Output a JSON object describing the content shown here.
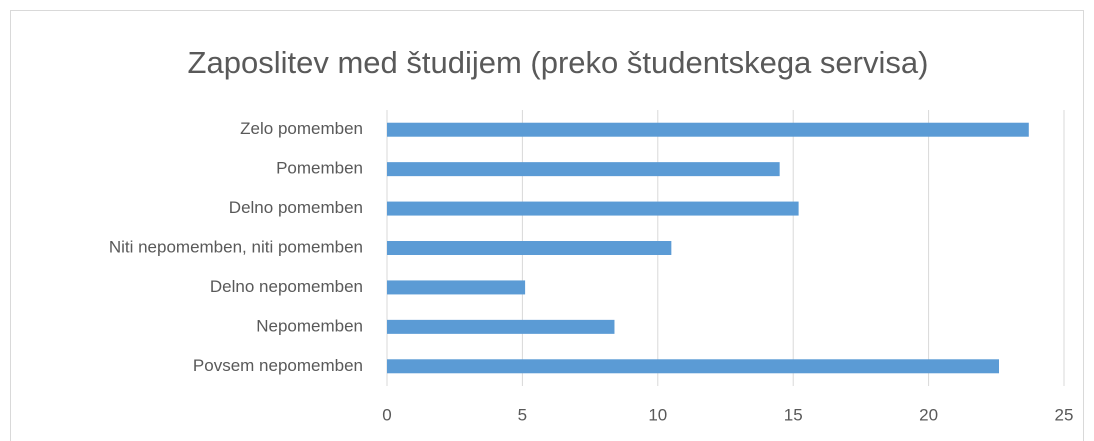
{
  "chart_data": {
    "type": "bar",
    "orientation": "horizontal",
    "title": "Zaposlitev med študijem (preko študentskega servisa)",
    "categories": [
      "Zelo pomemben",
      "Pomemben",
      "Delno pomemben",
      "Niti nepomemben, niti pomemben",
      "Delno nepomemben",
      "Nepomemben",
      "Povsem nepomemben"
    ],
    "values": [
      23.7,
      14.5,
      15.2,
      10.5,
      5.1,
      8.4,
      22.6
    ],
    "color": "#5b9bd5",
    "xlim": [
      0,
      25
    ],
    "xticks": [
      0,
      5,
      10,
      15,
      20,
      25
    ],
    "grid": true
  }
}
